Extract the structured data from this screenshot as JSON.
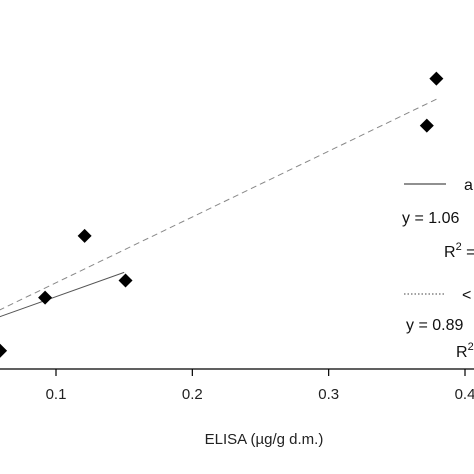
{
  "chart_data": {
    "type": "scatter",
    "xlabel": "ELISA (µg/g d.m.)",
    "ylabel": "",
    "xlim": [
      0.058,
      0.41
    ],
    "ylim": [
      0.05,
      0.41
    ],
    "x_ticks": [
      {
        "value": 0.1,
        "label": "0.1"
      },
      {
        "value": 0.2,
        "label": "0.2"
      },
      {
        "value": 0.3,
        "label": "0.3"
      },
      {
        "value": 0.4,
        "label": "0.4"
      }
    ],
    "points": [
      {
        "x": 0.059,
        "y": 0.0655
      },
      {
        "x": 0.092,
        "y": 0.1215
      },
      {
        "x": 0.121,
        "y": 0.1865
      },
      {
        "x": 0.151,
        "y": 0.1395
      },
      {
        "x": 0.372,
        "y": 0.3025
      },
      {
        "x": 0.379,
        "y": 0.352
      }
    ],
    "series": [
      {
        "style": "solid",
        "x": [
          0.058,
          0.15
        ],
        "y": [
          0.101,
          0.148
        ]
      },
      {
        "style": "dashed",
        "x": [
          0.058,
          0.38
        ],
        "y": [
          0.108,
          0.331
        ]
      }
    ],
    "legend": {
      "placement": "right",
      "entries": [
        {
          "style": "solid",
          "label": "a",
          "equation": "y = 1.06",
          "r2": "R2 ="
        },
        {
          "style": "dotted",
          "label": "<",
          "equation": "y = 0.89",
          "r2": "R2"
        }
      ]
    },
    "grid": false
  }
}
